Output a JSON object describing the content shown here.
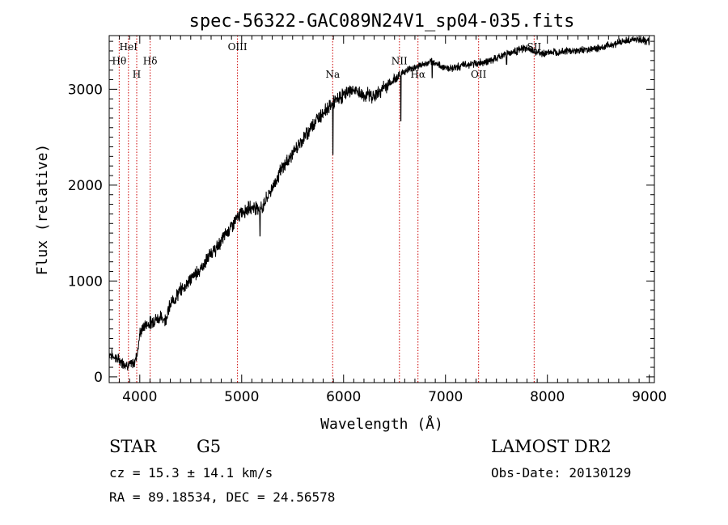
{
  "chart_data": {
    "type": "line",
    "title": "spec-56322-GAC089N24V1_sp04-035.fits",
    "xlabel": "Wavelength (Å)",
    "ylabel": "Flux (relative)",
    "xlim": [
      3700,
      9050
    ],
    "ylim": [
      -60,
      3560
    ],
    "xticks": [
      4000,
      5000,
      6000,
      7000,
      8000,
      9000
    ],
    "yticks": [
      0,
      1000,
      2000,
      3000
    ],
    "grid": false,
    "series": [
      {
        "points": [
          [
            3700,
            250
          ],
          [
            3750,
            210
          ],
          [
            3800,
            170
          ],
          [
            3850,
            140
          ],
          [
            3900,
            120
          ],
          [
            3950,
            150
          ],
          [
            3980,
            280
          ],
          [
            4000,
            450
          ],
          [
            4050,
            540
          ],
          [
            4100,
            560
          ],
          [
            4150,
            600
          ],
          [
            4200,
            620
          ],
          [
            4250,
            600
          ],
          [
            4300,
            750
          ],
          [
            4350,
            830
          ],
          [
            4400,
            900
          ],
          [
            4450,
            960
          ],
          [
            4500,
            1020
          ],
          [
            4550,
            1080
          ],
          [
            4600,
            1130
          ],
          [
            4650,
            1200
          ],
          [
            4700,
            1300
          ],
          [
            4750,
            1330
          ],
          [
            4800,
            1420
          ],
          [
            4850,
            1500
          ],
          [
            4900,
            1570
          ],
          [
            4950,
            1640
          ],
          [
            5000,
            1720
          ],
          [
            5050,
            1750
          ],
          [
            5100,
            1770
          ],
          [
            5150,
            1770
          ],
          [
            5200,
            1760
          ],
          [
            5250,
            1870
          ],
          [
            5300,
            1970
          ],
          [
            5350,
            2080
          ],
          [
            5400,
            2180
          ],
          [
            5450,
            2250
          ],
          [
            5500,
            2330
          ],
          [
            5550,
            2400
          ],
          [
            5600,
            2480
          ],
          [
            5650,
            2550
          ],
          [
            5700,
            2640
          ],
          [
            5750,
            2700
          ],
          [
            5800,
            2760
          ],
          [
            5850,
            2810
          ],
          [
            5900,
            2860
          ],
          [
            5950,
            2900
          ],
          [
            6000,
            2940
          ],
          [
            6050,
            2980
          ],
          [
            6100,
            2990
          ],
          [
            6150,
            2960
          ],
          [
            6200,
            2930
          ],
          [
            6250,
            2950
          ],
          [
            6300,
            2920
          ],
          [
            6350,
            2970
          ],
          [
            6400,
            3020
          ],
          [
            6450,
            3060
          ],
          [
            6500,
            3100
          ],
          [
            6550,
            3150
          ],
          [
            6600,
            3190
          ],
          [
            6650,
            3210
          ],
          [
            6700,
            3230
          ],
          [
            6750,
            3250
          ],
          [
            6800,
            3260
          ],
          [
            6850,
            3280
          ],
          [
            6900,
            3280
          ],
          [
            6950,
            3240
          ],
          [
            7000,
            3230
          ],
          [
            7050,
            3220
          ],
          [
            7100,
            3230
          ],
          [
            7150,
            3240
          ],
          [
            7200,
            3260
          ],
          [
            7250,
            3260
          ],
          [
            7300,
            3270
          ],
          [
            7350,
            3280
          ],
          [
            7400,
            3290
          ],
          [
            7450,
            3300
          ],
          [
            7500,
            3320
          ],
          [
            7550,
            3350
          ],
          [
            7600,
            3370
          ],
          [
            7650,
            3390
          ],
          [
            7700,
            3400
          ],
          [
            7750,
            3420
          ],
          [
            7800,
            3430
          ],
          [
            7850,
            3400
          ],
          [
            7900,
            3380
          ],
          [
            7950,
            3370
          ],
          [
            8000,
            3380
          ],
          [
            8050,
            3390
          ],
          [
            8100,
            3390
          ],
          [
            8150,
            3400
          ],
          [
            8200,
            3400
          ],
          [
            8250,
            3400
          ],
          [
            8300,
            3400
          ],
          [
            8350,
            3410
          ],
          [
            8400,
            3420
          ],
          [
            8450,
            3420
          ],
          [
            8500,
            3430
          ],
          [
            8550,
            3440
          ],
          [
            8600,
            3460
          ],
          [
            8650,
            3470
          ],
          [
            8700,
            3490
          ],
          [
            8750,
            3500
          ],
          [
            8800,
            3510
          ],
          [
            8850,
            3520
          ],
          [
            8900,
            3520
          ],
          [
            8950,
            3510
          ],
          [
            9000,
            3490
          ]
        ]
      }
    ],
    "absorption_dips": [
      {
        "x": 5180,
        "y": 1470
      },
      {
        "x": 5895,
        "y": 2320
      },
      {
        "x": 6563,
        "y": 2670
      },
      {
        "x": 6870,
        "y": 3120
      },
      {
        "x": 7600,
        "y": 3260
      }
    ],
    "line_markers": [
      {
        "label": "Hθ",
        "wavelength": 3798,
        "label_y": 3260
      },
      {
        "label": "HeI",
        "wavelength": 3889,
        "label_y": 3410
      },
      {
        "label": "H",
        "wavelength": 3970,
        "label_y": 3120
      },
      {
        "label": "Hδ",
        "wavelength": 4102,
        "label_y": 3260
      },
      {
        "label": "OIII",
        "wavelength": 4959,
        "label_y": 3410
      },
      {
        "label": "Na",
        "wavelength": 5893,
        "label_y": 3120
      },
      {
        "label": "NII",
        "wavelength": 6548,
        "label_y": 3260
      },
      {
        "label": "Hα",
        "wavelength": 6730,
        "label_y": 3120
      },
      {
        "label": "OII",
        "wavelength": 7325,
        "label_y": 3120
      },
      {
        "label": "SII",
        "wavelength": 7870,
        "label_y": 3410
      }
    ],
    "marker_color": "#cc0000",
    "line_color": "#000000"
  },
  "info": {
    "class": "STAR",
    "subclass": "G5",
    "survey": "LAMOST DR2",
    "cz": "cz = 15.3 ± 14.1 km/s",
    "obs_date": "Obs-Date: 20130129",
    "coords": "RA =  89.18534, DEC =  24.56578"
  }
}
